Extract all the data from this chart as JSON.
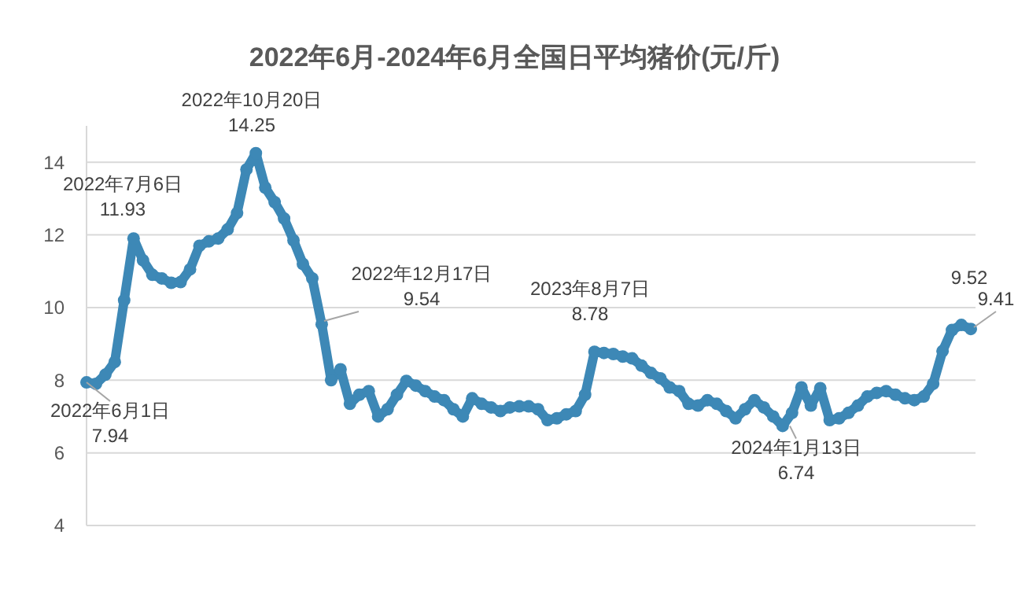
{
  "chart_data": {
    "type": "line",
    "title": "2022年6月-2024年6月全国日平均猪价(元/斤)",
    "categories": [
      null,
      null,
      null,
      null,
      null,
      null,
      null,
      null,
      null,
      null,
      null,
      null,
      null,
      null,
      null,
      null,
      null,
      null,
      null,
      null,
      null,
      null,
      null,
      null,
      null,
      null,
      null,
      null,
      null,
      null,
      null,
      null,
      null,
      null,
      null,
      null,
      null,
      null,
      null,
      null,
      null,
      null,
      null,
      null,
      null,
      null,
      null,
      null,
      null,
      null,
      null,
      null,
      null,
      null,
      null,
      null,
      null,
      null,
      null,
      null,
      null,
      null,
      null,
      null,
      null,
      null,
      null,
      null,
      null,
      null,
      null,
      null,
      null,
      null,
      null,
      null,
      null,
      null,
      null,
      null,
      null,
      null,
      null,
      null,
      null,
      null,
      null,
      null,
      null,
      null,
      null,
      null,
      null,
      null,
      null
    ],
    "series": [
      {
        "color": "#3d88b6",
        "values": [
          7.94,
          7.9,
          8.15,
          8.5,
          10.2,
          11.9,
          11.3,
          10.9,
          10.8,
          10.68,
          10.7,
          11.05,
          11.7,
          11.82,
          11.9,
          12.15,
          12.6,
          13.8,
          14.25,
          13.3,
          12.9,
          12.45,
          11.85,
          11.2,
          10.8,
          9.54,
          8.0,
          8.3,
          7.35,
          7.6,
          7.7,
          7.0,
          7.2,
          7.6,
          7.98,
          7.85,
          7.7,
          7.55,
          7.45,
          7.2,
          7.0,
          7.5,
          7.35,
          7.25,
          7.15,
          7.25,
          7.28,
          7.28,
          7.2,
          6.9,
          6.95,
          7.06,
          7.15,
          7.6,
          8.78,
          8.75,
          8.72,
          8.65,
          8.6,
          8.4,
          8.2,
          8.05,
          7.8,
          7.7,
          7.35,
          7.3,
          7.45,
          7.35,
          7.15,
          6.95,
          7.2,
          7.45,
          7.25,
          7.0,
          6.74,
          7.1,
          7.8,
          7.3,
          7.78,
          6.9,
          6.95,
          7.1,
          7.3,
          7.55,
          7.65,
          7.7,
          7.6,
          7.5,
          7.45,
          7.55,
          7.9,
          8.8,
          9.38,
          9.52,
          9.41
        ]
      }
    ],
    "ylim": [
      4,
      15
    ],
    "yticks": [
      4,
      6,
      8,
      10,
      12,
      14
    ],
    "grid": "y",
    "tick_labels": "y",
    "marker": "circle",
    "annotations": [
      {
        "text": "2022年6月1日\n7.94",
        "y": 7.94
      },
      {
        "text": "2022年7月6日\n11.93",
        "y": 11.93
      },
      {
        "text": "2022年10月20日\n14.25",
        "y": 14.25
      },
      "2022年12月17日\n9.54",
      {
        "text": "2023年8月7日\n8.78",
        "y": 8.78
      },
      {
        "text": "2024年1月13日\n6.74",
        "y": 6.74
      },
      {
        "text": "9.52",
        "y": 9.52
      },
      "9.41"
    ]
  }
}
